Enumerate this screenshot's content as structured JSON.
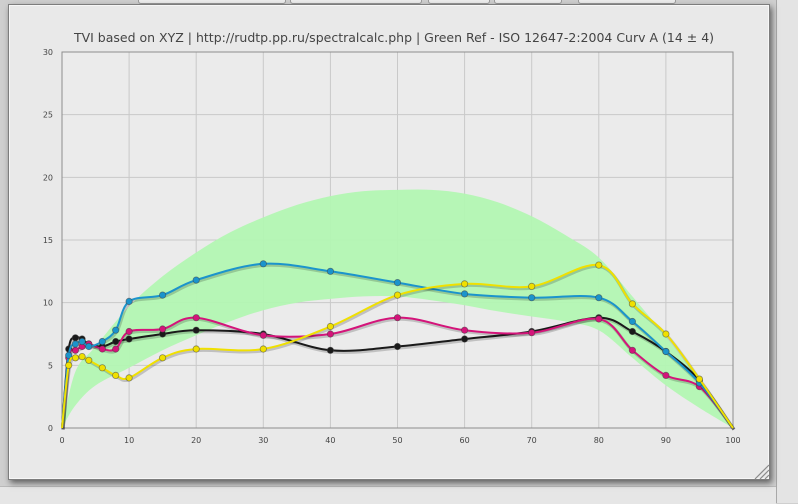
{
  "chart_data": {
    "type": "line",
    "title": "TVI based on XYZ  |  http://rudtp.pp.ru/spectralcalc.php  |  Green Ref - ISO 12647-2:2004 Curv A (14 ± 4)",
    "xlabel": "",
    "ylabel": "",
    "xlim": [
      0,
      100
    ],
    "ylim": [
      0,
      30
    ],
    "x_ticks": [
      0,
      10,
      20,
      30,
      40,
      50,
      60,
      70,
      80,
      90,
      100
    ],
    "y_ticks": [
      0,
      5,
      10,
      15,
      20,
      25,
      30
    ],
    "grid": true,
    "reference_band": {
      "color": "#b3f7b3",
      "x": [
        0,
        2,
        5,
        10,
        15,
        20,
        25,
        30,
        35,
        40,
        45,
        50,
        55,
        60,
        65,
        70,
        75,
        80,
        85,
        90,
        95,
        100
      ],
      "lower": [
        0,
        1.8,
        3.4,
        4.8,
        6.2,
        7.4,
        8.5,
        9.4,
        10.0,
        10.3,
        10.5,
        10.5,
        10.2,
        9.8,
        9.3,
        8.9,
        8.5,
        7.8,
        5.6,
        3.4,
        1.6,
        0
      ],
      "upper": [
        0,
        4.5,
        6.5,
        9.7,
        12.1,
        14.0,
        15.6,
        16.8,
        17.8,
        18.5,
        18.9,
        19.0,
        19.0,
        18.7,
        18.0,
        16.9,
        15.4,
        13.6,
        10.5,
        7.3,
        3.8,
        0
      ]
    },
    "series": [
      {
        "color": "#1a1a1a",
        "x": [
          0,
          1,
          2,
          3,
          4,
          6,
          8,
          10,
          15,
          20,
          30,
          40,
          50,
          60,
          70,
          80,
          85,
          90,
          95,
          100
        ],
        "values": [
          0,
          6.3,
          7.2,
          7.1,
          6.7,
          6.5,
          6.9,
          7.1,
          7.5,
          7.8,
          7.5,
          6.2,
          6.5,
          7.1,
          7.7,
          8.8,
          7.7,
          6.1,
          3.8,
          0
        ]
      },
      {
        "color": "#d4147a",
        "x": [
          0,
          1,
          2,
          3,
          4,
          6,
          8,
          10,
          15,
          20,
          30,
          40,
          50,
          60,
          70,
          80,
          85,
          90,
          95,
          100
        ],
        "values": [
          0,
          5.6,
          6.2,
          6.5,
          6.7,
          6.3,
          6.3,
          7.7,
          7.9,
          8.8,
          7.4,
          7.5,
          8.8,
          7.8,
          7.6,
          8.7,
          6.2,
          4.2,
          3.3,
          0
        ]
      },
      {
        "color": "#1b94cc",
        "x": [
          0,
          1,
          2,
          3,
          4,
          6,
          8,
          10,
          15,
          20,
          30,
          40,
          50,
          60,
          70,
          80,
          85,
          90,
          95,
          100
        ],
        "values": [
          0,
          5.8,
          6.7,
          6.9,
          6.5,
          6.9,
          7.8,
          10.1,
          10.6,
          11.8,
          13.1,
          12.5,
          11.6,
          10.7,
          10.4,
          10.4,
          8.5,
          6.1,
          3.6,
          0
        ]
      },
      {
        "color": "#f0e000",
        "x": [
          0,
          1,
          2,
          3,
          4,
          6,
          8,
          10,
          15,
          20,
          30,
          40,
          50,
          60,
          70,
          80,
          85,
          90,
          95,
          100
        ],
        "values": [
          0,
          5.0,
          5.6,
          5.7,
          5.4,
          4.8,
          4.2,
          4.0,
          5.6,
          6.3,
          6.3,
          8.1,
          10.6,
          11.5,
          11.3,
          13.0,
          9.9,
          7.5,
          3.9,
          0
        ]
      }
    ]
  }
}
